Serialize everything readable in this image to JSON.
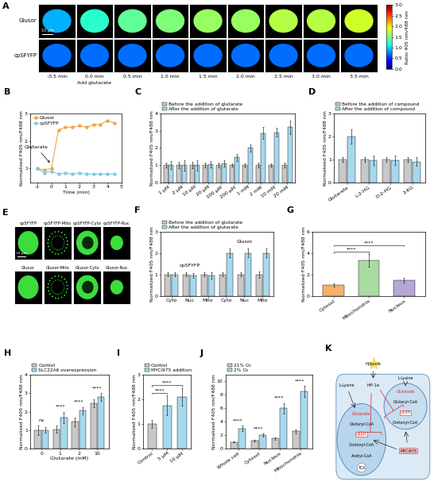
{
  "images_A": {
    "panel": "A",
    "rows": [
      {
        "label": "Glusor",
        "frame_ratio": [
          0.9,
          1.2,
          1.4,
          1.5,
          1.6,
          1.6,
          1.7,
          1.7,
          1.8
        ]
      },
      {
        "label": "cpSFYFP",
        "frame_ratio": [
          0.7,
          0.7,
          0.7,
          0.7,
          0.7,
          0.7,
          0.7,
          0.7,
          0.7
        ]
      }
    ],
    "times": [
      "-0.5 min",
      "0.0 min",
      "0.5 min",
      "1.0 min",
      "1.5 min",
      "2.0 min",
      "2.5 min",
      "3.0 min",
      "3.5 min"
    ],
    "event": {
      "text": "Add glutarate",
      "frame": 1
    },
    "scale_bar": "10 μm",
    "colorbar": {
      "label": "Ratio 405 nm/488 nm",
      "range": [
        0,
        3
      ],
      "ticks": [
        {
          "value": 0,
          "label": "0.0"
        },
        {
          "value": 0.5,
          "label": "0.5"
        },
        {
          "value": 1,
          "label": "1.0"
        },
        {
          "value": 1.5,
          "label": "1.5"
        },
        {
          "value": 2,
          "label": "2.0"
        },
        {
          "value": 2.5,
          "label": "2.5"
        },
        {
          "value": 3,
          "label": "3.0"
        }
      ]
    }
  },
  "chart_data": [
    {
      "panel": "B",
      "type": "line",
      "x_label": "Time (min)",
      "y_label": "Normalized F405 nm/F488 nm",
      "x": [
        -1,
        -0.5,
        0,
        0.5,
        1,
        1.5,
        2,
        2.5,
        3,
        3.5,
        4,
        4.5
      ],
      "series": [
        {
          "name": "Glusor",
          "color": "#f4a340",
          "marker": "circle",
          "line_style": "solid",
          "values": [
            1.0,
            0.95,
            1.0,
            2.4,
            2.5,
            2.5,
            2.55,
            2.5,
            2.6,
            2.6,
            2.75,
            2.65
          ]
        },
        {
          "name": "cpSFYFP",
          "color": "#7ec8e3",
          "marker": "circle",
          "line_style": "solid",
          "values": [
            1.0,
            0.85,
            0.9,
            0.8,
            0.85,
            0.8,
            0.85,
            0.8,
            0.8,
            0.8,
            0.8,
            0.8
          ]
        }
      ],
      "annotations": [
        {
          "text": "Glutarate",
          "x": 0,
          "y": 1.15
        }
      ],
      "xlim": [
        -1.5,
        5
      ],
      "xticks": [
        -1,
        0,
        1,
        2,
        3,
        4,
        5
      ],
      "ylim": [
        0.5,
        3
      ],
      "yticks": [
        1,
        2,
        3
      ],
      "legend": "upper left"
    },
    {
      "panel": "C",
      "type": "bar",
      "y_label": "Normalized F405 nm/F488 nm",
      "categories": [
        "1 μM",
        "2 μM",
        "10 μM",
        "20 μM",
        "100 μM",
        "200 μM",
        "1 mM",
        "2 mM",
        "10 mM",
        "20 mM"
      ],
      "series": [
        {
          "name": "Before the addition of glutarate",
          "color": "#c8c8c8",
          "values": [
            1.0,
            1.0,
            1.0,
            1.0,
            1.0,
            1.0,
            1.0,
            1.0,
            1.0,
            1.0
          ],
          "errors": [
            0.15,
            0.2,
            0.2,
            0.15,
            0.15,
            0.1,
            0.1,
            0.15,
            0.1,
            0.15
          ]
        },
        {
          "name": "After the addition of glutarate",
          "color": "#a6d9ee",
          "values": [
            1.0,
            1.0,
            1.0,
            1.05,
            1.1,
            1.45,
            2.0,
            2.85,
            2.9,
            3.2
          ],
          "errors": [
            0.25,
            0.3,
            0.3,
            0.2,
            0.2,
            0.2,
            0.2,
            0.35,
            0.25,
            0.4
          ]
        }
      ],
      "ylim": [
        0,
        4
      ],
      "yticks": [
        0,
        1,
        2,
        3,
        4
      ],
      "legend": "top"
    },
    {
      "panel": "D",
      "type": "bar",
      "y_label": "Normalized F405 nm/F488 nm",
      "categories": [
        "Glutarate",
        "L-2-HG",
        "D-2-HG",
        "2-KG"
      ],
      "series": [
        {
          "name": "Before the addition of compound",
          "color": "#c8c8c8",
          "values": [
            1.0,
            1.0,
            1.0,
            1.0
          ],
          "errors": [
            0.1,
            0.1,
            0.1,
            0.1
          ]
        },
        {
          "name": "After the addition of compound",
          "color": "#a6d9ee",
          "values": [
            2.0,
            0.95,
            0.95,
            0.9
          ],
          "errors": [
            0.3,
            0.2,
            0.2,
            0.2
          ]
        }
      ],
      "ylim": [
        0,
        3
      ],
      "yticks": [
        0,
        1,
        2,
        3
      ],
      "legend": "top"
    },
    {
      "panel": "F",
      "type": "bar",
      "y_label": "Normalized F405 nm/F488 nm",
      "categories": [
        "Cyto",
        "Nuc",
        "Mito",
        "Cyto",
        "Nuc",
        "Mito"
      ],
      "groups": [
        {
          "label": "cpSFYFP",
          "categories": [
            0,
            1,
            2
          ]
        },
        {
          "label": "Glusor",
          "categories": [
            3,
            4,
            5
          ]
        }
      ],
      "series": [
        {
          "name": "Before the addition of glutarate",
          "color": "#c8c8c8",
          "values": [
            1.0,
            1.0,
            1.0,
            1.0,
            1.0,
            1.0
          ],
          "errors": [
            0.1,
            0.1,
            0.1,
            0.1,
            0.1,
            0.15
          ]
        },
        {
          "name": "After the addition of glutarate",
          "color": "#a6d9ee",
          "values": [
            1.0,
            0.95,
            0.95,
            2.0,
            2.0,
            2.0
          ],
          "errors": [
            0.1,
            0.1,
            0.15,
            0.2,
            0.2,
            0.2
          ]
        }
      ],
      "ylim": [
        0,
        3
      ],
      "yticks": [
        0,
        1,
        2,
        3
      ],
      "legend": "top"
    },
    {
      "panel": "G",
      "type": "bar",
      "y_label": "Normalized F405 nm/F488 nm",
      "categories": [
        "Cytosol",
        "Mitochondria",
        "Nucleus"
      ],
      "values": [
        1.0,
        3.3,
        1.45
      ],
      "errors": [
        0.15,
        0.6,
        0.25
      ],
      "colors": [
        "#f6b26b",
        "#a9dba3",
        "#b4a7d6"
      ],
      "significance": [
        {
          "text": "****",
          "pair": [
            0,
            1
          ]
        },
        {
          "text": "****",
          "pair": [
            0,
            2
          ]
        }
      ],
      "ylim": [
        0,
        6
      ],
      "yticks": [
        0,
        2,
        4,
        6
      ]
    },
    {
      "panel": "H",
      "type": "bar",
      "x_label": "Glutarate (mM)",
      "y_label": "Normalized F405 nm/F488 nm",
      "categories": [
        "0",
        "1",
        "2",
        "10"
      ],
      "series": [
        {
          "name": "Control",
          "color": "#c8c8c8",
          "values": [
            1.0,
            1.05,
            1.45,
            2.45
          ],
          "errors": [
            0.25,
            0.2,
            0.25,
            0.2
          ]
        },
        {
          "name": "SLC22A6 overexpression",
          "color": "#a6d9ee",
          "values": [
            1.0,
            1.7,
            2.05,
            2.8
          ],
          "errors": [
            0.15,
            0.3,
            0.2,
            0.2
          ]
        }
      ],
      "significance": [
        {
          "text": "ns",
          "category": 0
        },
        {
          "text": "****",
          "category": 1
        },
        {
          "text": "****",
          "category": 2
        },
        {
          "text": "****",
          "category": 3
        }
      ],
      "ylim": [
        0,
        4
      ],
      "yticks": [
        0,
        1,
        2,
        3,
        4
      ],
      "legend": "top"
    },
    {
      "panel": "I",
      "type": "bar",
      "y_label": "Normalized F405 nm/F488 nm",
      "categories": [
        "Control",
        "5 μM",
        "10 μM"
      ],
      "values": [
        1.0,
        1.75,
        2.1
      ],
      "errors": [
        0.15,
        0.4,
        0.35
      ],
      "colors": [
        "#c8c8c8",
        "#a6d9ee",
        "#a6d9ee"
      ],
      "legend_entries": [
        {
          "name": "Control",
          "color": "#c8c8c8"
        },
        {
          "name": "MYCi975 addition",
          "color": "#a6d9ee"
        }
      ],
      "significance": [
        {
          "text": "****",
          "pair": [
            0,
            1
          ]
        },
        {
          "text": "****",
          "pair": [
            0,
            2
          ]
        }
      ],
      "ylim": [
        0,
        3
      ],
      "yticks": [
        0,
        1,
        2,
        3
      ],
      "legend": "top"
    },
    {
      "panel": "J",
      "type": "bar",
      "y_label": "Normalized F405 nm/F488 nm",
      "categories": [
        "Whole cell",
        "Cytosol",
        "Nucleus",
        "Mitochondria"
      ],
      "series": [
        {
          "name": "21% O₂",
          "color": "#c8c8c8",
          "values": [
            1.0,
            1.2,
            1.5,
            2.6
          ],
          "errors": [
            0.1,
            0.1,
            0.2,
            0.3
          ]
        },
        {
          "name": "2% O₂",
          "color": "#a6d9ee",
          "values": [
            3.0,
            2.0,
            6.0,
            8.5
          ],
          "errors": [
            0.4,
            0.2,
            0.8,
            0.8
          ]
        }
      ],
      "significance": [
        {
          "text": "****",
          "category": 0
        },
        {
          "text": "****",
          "category": 1
        },
        {
          "text": "****",
          "category": 2
        },
        {
          "text": "****",
          "category": 3
        }
      ],
      "ylim": [
        0,
        11
      ],
      "yticks": [
        0,
        2,
        4,
        6,
        8,
        10
      ],
      "legend": "top"
    }
  ],
  "images_E": {
    "panel": "E",
    "rows": [
      [
        "cpSFYFP",
        "cpSFYFP-Mito",
        "cpSFYFP-Cyto",
        "cpSFYFP-Nuc"
      ],
      [
        "Glusor",
        "Glusor-Mito",
        "Glusor-Cyto",
        "Glusor-Nuc"
      ]
    ],
    "scale_bar": "10 μm"
  },
  "diagram_K": {
    "panel": "K",
    "nodes": {
      "hypoxia": "Hypoxia",
      "hif": "HIF-1α",
      "lysine_cyto": "L-Lysine",
      "lysine_nuc": "L-Lysine",
      "mito_glutarate": "Glutarate",
      "mito_glutaryl": "Glutaryl-CoA",
      "mito_gcdh": "GcdH",
      "mito_crotonyl": "Crotonyl-CoA",
      "acetyl": "Acetyl-CoA",
      "tca": "TCA",
      "nuc_glutarate": "Glutarate",
      "nuc_glutaryl": "Glutaryl-CoA",
      "nuc_gcdh": "GcdH",
      "nuc_crotonyl": "Crotonyl-CoA",
      "myc": "MYCi975"
    }
  }
}
